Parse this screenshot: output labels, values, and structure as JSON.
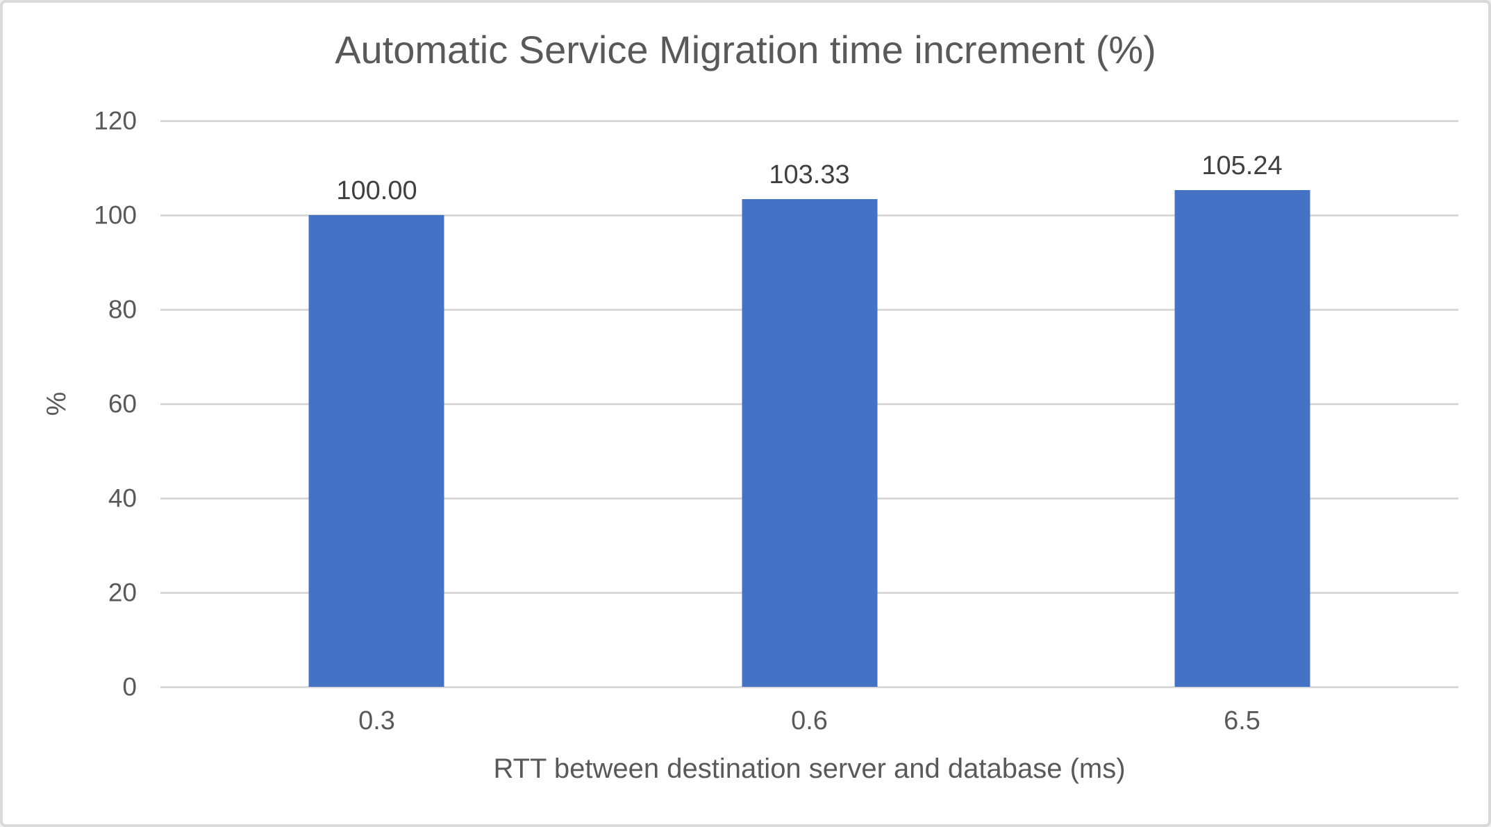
{
  "window": {
    "background": "#ffffff",
    "border_color": "#d9d9d9"
  },
  "chart_data": {
    "type": "bar",
    "title": "Automatic Service Migration time increment (%)",
    "categories": [
      "0.3",
      "0.6",
      "6.5"
    ],
    "values": [
      100.0,
      103.33,
      105.24
    ],
    "data_labels": [
      "100.00",
      "103.33",
      "105.24"
    ],
    "xlabel": "RTT between destination server and database (ms)",
    "ylabel": "%",
    "ylim": [
      0,
      120
    ],
    "yticks": [
      0,
      20,
      40,
      60,
      80,
      100,
      120
    ],
    "grid": true,
    "legend": "none",
    "bar_color": "#4472c4",
    "gridline_color": "#d9d9d9",
    "axis_text_color": "#595959",
    "data_label_color": "#404040"
  }
}
